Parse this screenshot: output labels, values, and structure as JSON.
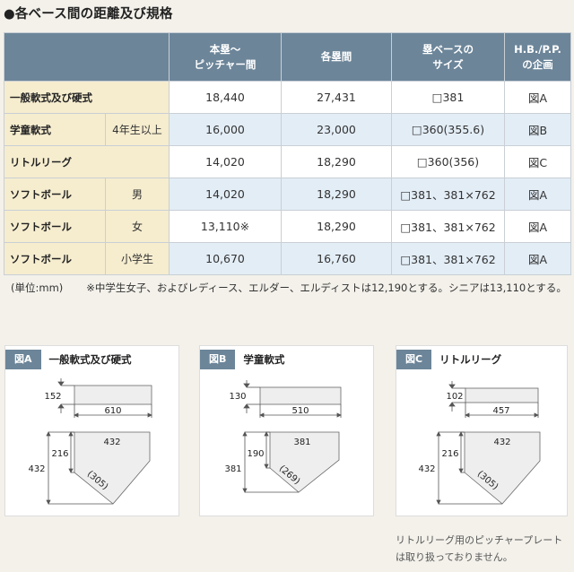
{
  "title": "●各ベース間の距離及び規格",
  "table": {
    "headers": {
      "pitcher": [
        "本塁～",
        "ピッチャー間"
      ],
      "bases": "各塁間",
      "size": [
        "塁ベースの",
        "サイズ"
      ],
      "plan": [
        "H.B./P.P.",
        "の企画"
      ]
    },
    "rows": [
      {
        "label": "一般軟式及び硬式",
        "sub": "",
        "pitcher": "18,440",
        "bases": "27,431",
        "size": "□381",
        "fig": "図A"
      },
      {
        "label": "学童軟式",
        "sub": "4年生以上",
        "pitcher": "16,000",
        "bases": "23,000",
        "size": "□360(355.6)",
        "fig": "図B"
      },
      {
        "label": "リトルリーグ",
        "sub": "",
        "pitcher": "14,020",
        "bases": "18,290",
        "size": "□360(356)",
        "fig": "図C"
      },
      {
        "label": "ソフトボール",
        "sub": "男",
        "pitcher": "14,020",
        "bases": "18,290",
        "size": "□381、381×762",
        "fig": "図A"
      },
      {
        "label": "ソフトボール",
        "sub": "女",
        "pitcher": "13,110※",
        "bases": "18,290",
        "size": "□381、381×762",
        "fig": "図A"
      },
      {
        "label": "ソフトボール",
        "sub": "小学生",
        "pitcher": "10,670",
        "bases": "16,760",
        "size": "□381、381×762",
        "fig": "図A"
      }
    ]
  },
  "note": {
    "unit": "(単位:mm)",
    "text": "※中学生女子、およびレディース、エルダー、エルディストは12,190とする。シニアは13,110とする。"
  },
  "figures": [
    {
      "tag": "図A",
      "name": "一般軟式及び硬式",
      "plate_h": "152",
      "plate_w": "610",
      "home_w": "432",
      "home_side": "216",
      "home_total": "432",
      "diag": "(305)"
    },
    {
      "tag": "図B",
      "name": "学童軟式",
      "plate_h": "130",
      "plate_w": "510",
      "home_w": "381",
      "home_side": "190",
      "home_total": "381",
      "diag": "(269)"
    },
    {
      "tag": "図C",
      "name": "リトルリーグ",
      "plate_h": "102",
      "plate_w": "457",
      "home_w": "432",
      "home_side": "216",
      "home_total": "432",
      "diag": "(305)"
    }
  ],
  "footer": [
    "リトルリーグ用のピッチャープレート",
    "は取り扱っておりません。"
  ]
}
